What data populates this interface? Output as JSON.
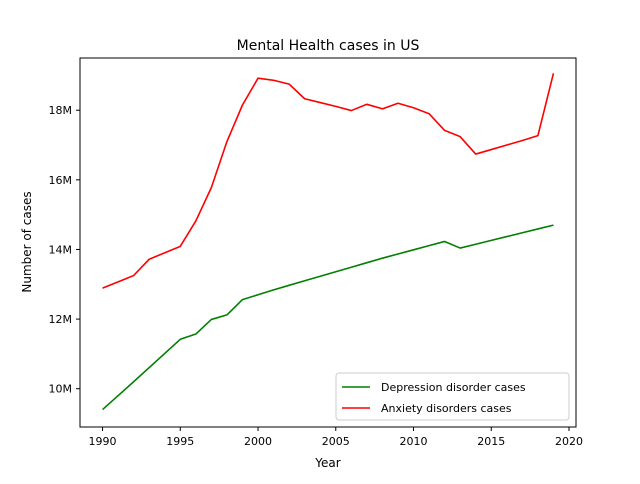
{
  "chart_data": {
    "type": "line",
    "title": "Mental Health cases in US",
    "xlabel": "Year",
    "ylabel": "Number of cases",
    "xlim": [
      1988.55,
      2020.45
    ],
    "ylim": [
      8900000,
      19500000
    ],
    "x_ticks": [
      1990,
      1995,
      2000,
      2005,
      2010,
      2015,
      2020
    ],
    "y_ticks": [
      {
        "value": 10000000,
        "label": "10M"
      },
      {
        "value": 12000000,
        "label": "12M"
      },
      {
        "value": 14000000,
        "label": "14M"
      },
      {
        "value": 16000000,
        "label": "16M"
      },
      {
        "value": 18000000,
        "label": "18M"
      }
    ],
    "grid": false,
    "legend_position": "lower-right",
    "series": [
      {
        "name": "Depression disorder cases",
        "color": "#008000",
        "x": [
          1990,
          1992,
          1995,
          1996,
          1997,
          1998,
          1999,
          2000,
          2001,
          2002,
          2003,
          2004,
          2005,
          2006,
          2007,
          2008,
          2009,
          2010,
          2011,
          2012,
          2013,
          2014,
          2015,
          2016,
          2017,
          2018,
          2019
        ],
        "values": [
          9400000,
          10200000,
          11420000,
          11570000,
          11990000,
          12120000,
          12560000,
          12700000,
          12840000,
          12970000,
          13100000,
          13230000,
          13360000,
          13490000,
          13620000,
          13750000,
          13870000,
          13990000,
          14110000,
          14230000,
          14040000,
          14150000,
          14260000,
          14370000,
          14480000,
          14590000,
          14700000
        ]
      },
      {
        "name": "Anxiety disorders cases",
        "color": "#ff0000",
        "x": [
          1990,
          1992,
          1993,
          1995,
          1996,
          1997,
          1998,
          1999,
          2000,
          2001,
          2002,
          2003,
          2004,
          2005,
          2006,
          2007,
          2008,
          2009,
          2010,
          2011,
          2012,
          2013,
          2014,
          2015,
          2016,
          2017,
          2018,
          2019
        ],
        "values": [
          12890000,
          13250000,
          13720000,
          14090000,
          14820000,
          15780000,
          17100000,
          18150000,
          18920000,
          18860000,
          18750000,
          18330000,
          18220000,
          18110000,
          17990000,
          18170000,
          18040000,
          18200000,
          18070000,
          17900000,
          17420000,
          17240000,
          16740000,
          16870000,
          17000000,
          17130000,
          17270000,
          19060000
        ]
      }
    ]
  }
}
